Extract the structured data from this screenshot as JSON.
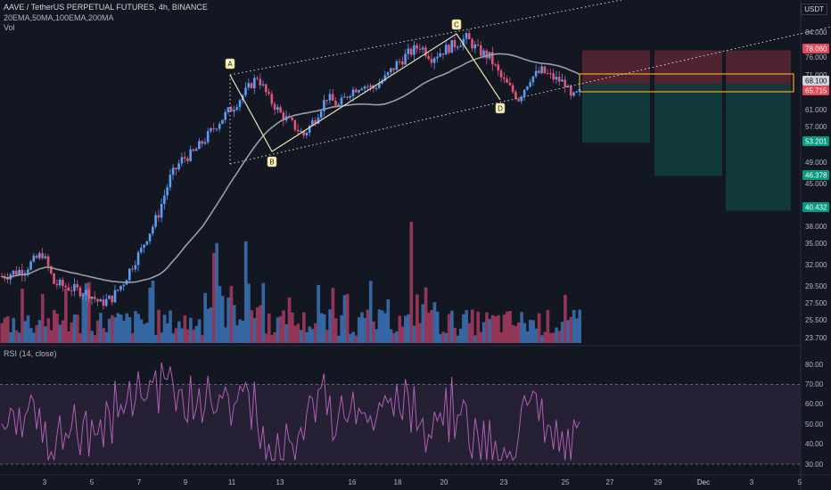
{
  "header": {
    "symbol": "AAVE / TetherUS PERPETUAL FUTURES, 4h, BINANCE",
    "indicators": "20EMA,50MA,100EMA,200MA",
    "volume": "Vol"
  },
  "rsi": {
    "label": "RSI (14, close)"
  },
  "unit_label": "USDT",
  "colors": {
    "background": "#131722",
    "bull": "#5b9cf6",
    "bear": "#e0567a",
    "vol_bull": "#3a6fb0",
    "vol_bear": "#a03a5c",
    "ma": "#9a9ea8",
    "rsi_line": "#b05fb5",
    "rsi_band": "#2a2338",
    "stop_zone": "#5a2632",
    "target_zone": "#123f3f",
    "entry_box": "#f5a623",
    "badge_red": "#e04a5a",
    "badge_green": "#089981",
    "badge_gray": "#d1d4dc"
  },
  "chart_data": {
    "type": "candlestick",
    "x_tick_labels": [
      "3",
      "5",
      "7",
      "9",
      "11",
      "13",
      "16",
      "18",
      "20",
      "23",
      "25",
      "27",
      "29",
      "Dec",
      "3",
      "5"
    ],
    "y_tick_labels": [
      "84.000",
      "76.000",
      "71.000",
      "61.000",
      "57.000",
      "49.000",
      "45.000",
      "38.000",
      "35.000",
      "32.000",
      "29.500",
      "27.500",
      "25.500",
      "23.700"
    ],
    "price_badges": [
      {
        "label": "78.060",
        "color": "red"
      },
      {
        "label": "68.100",
        "color": "gray"
      },
      {
        "label": "65.715",
        "color": "red"
      },
      {
        "label": "53.201",
        "color": "green"
      },
      {
        "label": "46.378",
        "color": "green"
      },
      {
        "label": "40.432",
        "color": "green"
      }
    ],
    "rsi_tick_labels": [
      "80.00",
      "70.00",
      "60.00",
      "50.00",
      "40.00",
      "30.00"
    ],
    "rsi_bands": [
      30,
      70
    ],
    "pattern_points": [
      "A",
      "B",
      "C",
      "D"
    ],
    "entry": 68.1,
    "stop": 78.06,
    "targets": [
      53.201,
      46.378,
      40.432
    ],
    "last_price": 65.715
  }
}
